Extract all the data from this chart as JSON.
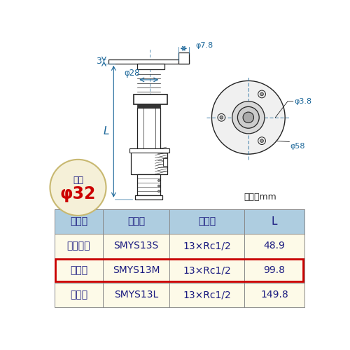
{
  "bg_color": "#ffffff",
  "header_color": "#aecde0",
  "row_color": "#fdfae8",
  "highlight_border": "#cc0000",
  "table_headers": [
    "タイプ",
    "品　番",
    "呼び径",
    "L"
  ],
  "rows": [
    [
      "ショート",
      "SMYS13S",
      "13×Rc1/2",
      "48.9"
    ],
    [
      "ミドル",
      "SMYS13M",
      "13×Rc1/2",
      "99.8"
    ],
    [
      "ロング",
      "SMYS13L",
      "13×Rc1/2",
      "149.8"
    ]
  ],
  "highlight_row": 1,
  "unit_text": "単位：mm",
  "floor_hole_label": "床穴",
  "floor_hole_size": "φ32",
  "dim_phi78": "φ7.8",
  "dim_phi28": "φ28",
  "dim_phi38": "φ3.8",
  "dim_phi58": "φ58",
  "dim_3": "3",
  "dim_L": "L",
  "text_color": "#1a1a80",
  "dim_color": "#1a6699",
  "red_text_color": "#cc0000",
  "circle_bg": "#f5f0d8",
  "circle_border": "#c8b870",
  "draw_color": "#222222"
}
